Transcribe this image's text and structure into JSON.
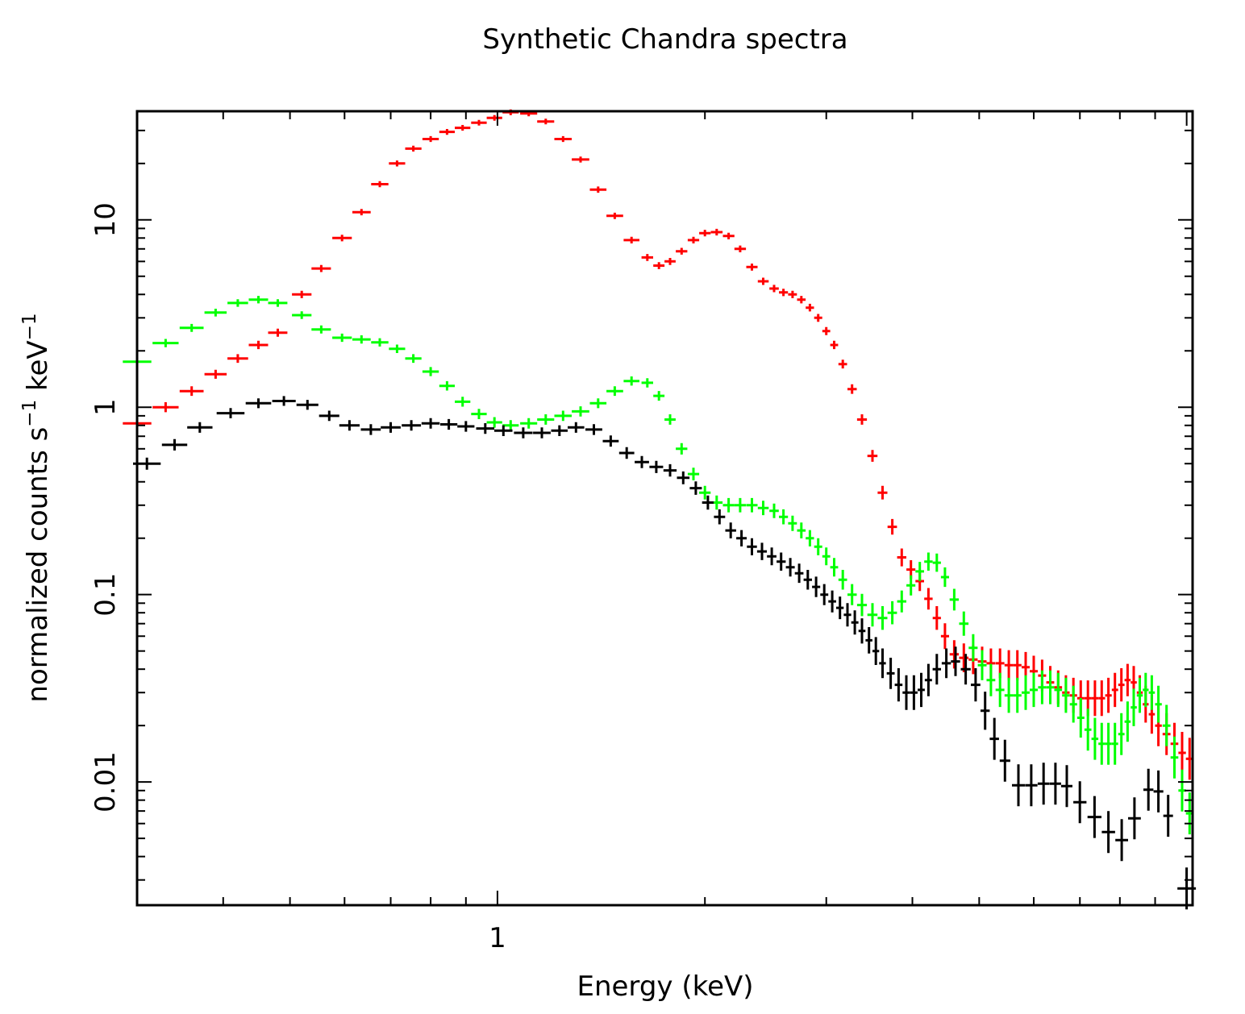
{
  "chart_data": {
    "type": "scatter",
    "title": "Synthetic Chandra spectra",
    "xlabel": "Energy (keV)",
    "ylabel": {
      "prefix": "normalized counts s",
      "exp1": "−1",
      "middle": " keV",
      "exp2": "−1"
    },
    "xscale": "log",
    "yscale": "log",
    "xlim": [
      0.3,
      10.2
    ],
    "ylim": [
      0.0022,
      38
    ],
    "x_tick_labels": [
      {
        "value": 1,
        "label": "1"
      }
    ],
    "y_tick_labels": [
      {
        "value": 10,
        "label": "10"
      },
      {
        "value": 1,
        "label": "1"
      },
      {
        "value": 0.1,
        "label": "0.1"
      },
      {
        "value": 0.01,
        "label": "0.01"
      }
    ],
    "series": [
      {
        "name": "red",
        "color": "#ff0000",
        "points": [
          [
            0.3,
            0.82
          ],
          [
            0.33,
            1.0
          ],
          [
            0.36,
            1.22
          ],
          [
            0.39,
            1.5
          ],
          [
            0.42,
            1.82
          ],
          [
            0.45,
            2.15
          ],
          [
            0.48,
            2.5
          ],
          [
            0.52,
            4.0
          ],
          [
            0.555,
            5.5
          ],
          [
            0.595,
            8.0
          ],
          [
            0.635,
            11.0
          ],
          [
            0.675,
            15.5
          ],
          [
            0.715,
            20.0
          ],
          [
            0.755,
            24.0
          ],
          [
            0.8,
            27.0
          ],
          [
            0.845,
            29.5
          ],
          [
            0.89,
            31.0
          ],
          [
            0.94,
            33.0
          ],
          [
            0.99,
            35.0
          ],
          [
            1.045,
            37.5
          ],
          [
            1.11,
            37.0
          ],
          [
            1.175,
            33.5
          ],
          [
            1.245,
            27.0
          ],
          [
            1.32,
            21.0
          ],
          [
            1.4,
            14.5
          ],
          [
            1.48,
            10.5
          ],
          [
            1.565,
            7.8
          ],
          [
            1.65,
            6.3
          ],
          [
            1.715,
            5.7
          ],
          [
            1.78,
            6.0
          ],
          [
            1.85,
            6.8
          ],
          [
            1.925,
            7.8
          ],
          [
            2.0,
            8.5
          ],
          [
            2.08,
            8.6
          ],
          [
            2.165,
            8.2
          ],
          [
            2.25,
            7.0
          ],
          [
            2.34,
            5.6
          ],
          [
            2.43,
            4.7
          ],
          [
            2.52,
            4.3
          ],
          [
            2.6,
            4.1
          ],
          [
            2.68,
            4.0
          ],
          [
            2.76,
            3.75
          ],
          [
            2.84,
            3.4
          ],
          [
            2.92,
            3.0
          ],
          [
            3.0,
            2.55
          ],
          [
            3.08,
            2.15
          ],
          [
            3.17,
            1.7
          ],
          [
            3.27,
            1.25
          ],
          [
            3.38,
            0.86
          ],
          [
            3.5,
            0.55
          ],
          [
            3.62,
            0.35
          ],
          [
            3.74,
            0.23
          ],
          [
            3.86,
            0.158
          ],
          [
            3.98,
            0.136
          ],
          [
            4.1,
            0.118
          ],
          [
            4.22,
            0.095
          ],
          [
            4.34,
            0.075
          ],
          [
            4.46,
            0.06
          ],
          [
            4.6,
            0.048
          ],
          [
            4.75,
            0.046
          ],
          [
            4.9,
            0.045
          ],
          [
            5.05,
            0.044
          ],
          [
            5.2,
            0.043
          ],
          [
            5.36,
            0.043
          ],
          [
            5.52,
            0.042
          ],
          [
            5.68,
            0.042
          ],
          [
            5.84,
            0.041
          ],
          [
            6.0,
            0.039
          ],
          [
            6.17,
            0.037
          ],
          [
            6.34,
            0.034
          ],
          [
            6.51,
            0.032
          ],
          [
            6.68,
            0.03
          ],
          [
            6.85,
            0.029
          ],
          [
            7.02,
            0.028
          ],
          [
            7.19,
            0.028
          ],
          [
            7.36,
            0.028
          ],
          [
            7.53,
            0.028
          ],
          [
            7.7,
            0.029
          ],
          [
            7.87,
            0.031
          ],
          [
            8.04,
            0.033
          ],
          [
            8.21,
            0.035
          ],
          [
            8.38,
            0.034
          ],
          [
            8.55,
            0.03
          ],
          [
            8.72,
            0.026
          ],
          [
            8.9,
            0.023
          ],
          [
            9.1,
            0.02
          ],
          [
            9.35,
            0.018
          ],
          [
            9.6,
            0.016
          ],
          [
            9.85,
            0.0143
          ],
          [
            10.1,
            0.0133
          ]
        ]
      },
      {
        "name": "green",
        "color": "#00ff00",
        "points": [
          [
            0.3,
            1.75
          ],
          [
            0.33,
            2.2
          ],
          [
            0.36,
            2.65
          ],
          [
            0.39,
            3.2
          ],
          [
            0.42,
            3.6
          ],
          [
            0.45,
            3.75
          ],
          [
            0.48,
            3.6
          ],
          [
            0.52,
            3.1
          ],
          [
            0.555,
            2.6
          ],
          [
            0.595,
            2.35
          ],
          [
            0.635,
            2.3
          ],
          [
            0.675,
            2.22
          ],
          [
            0.715,
            2.05
          ],
          [
            0.755,
            1.82
          ],
          [
            0.8,
            1.55
          ],
          [
            0.845,
            1.3
          ],
          [
            0.89,
            1.07
          ],
          [
            0.94,
            0.92
          ],
          [
            0.99,
            0.83
          ],
          [
            1.045,
            0.8
          ],
          [
            1.11,
            0.82
          ],
          [
            1.175,
            0.86
          ],
          [
            1.245,
            0.9
          ],
          [
            1.32,
            0.95
          ],
          [
            1.4,
            1.05
          ],
          [
            1.48,
            1.22
          ],
          [
            1.565,
            1.38
          ],
          [
            1.65,
            1.35
          ],
          [
            1.715,
            1.15
          ],
          [
            1.78,
            0.86
          ],
          [
            1.85,
            0.6
          ],
          [
            1.925,
            0.44
          ],
          [
            2.0,
            0.35
          ],
          [
            2.08,
            0.31
          ],
          [
            2.165,
            0.3
          ],
          [
            2.25,
            0.3
          ],
          [
            2.34,
            0.3
          ],
          [
            2.43,
            0.29
          ],
          [
            2.52,
            0.28
          ],
          [
            2.6,
            0.26
          ],
          [
            2.68,
            0.24
          ],
          [
            2.76,
            0.22
          ],
          [
            2.84,
            0.2
          ],
          [
            2.92,
            0.18
          ],
          [
            3.0,
            0.16
          ],
          [
            3.08,
            0.14
          ],
          [
            3.17,
            0.12
          ],
          [
            3.27,
            0.1
          ],
          [
            3.38,
            0.088
          ],
          [
            3.5,
            0.078
          ],
          [
            3.62,
            0.075
          ],
          [
            3.74,
            0.08
          ],
          [
            3.86,
            0.092
          ],
          [
            3.98,
            0.112
          ],
          [
            4.1,
            0.133
          ],
          [
            4.22,
            0.15
          ],
          [
            4.34,
            0.148
          ],
          [
            4.46,
            0.124
          ],
          [
            4.6,
            0.094
          ],
          [
            4.75,
            0.07
          ],
          [
            4.9,
            0.052
          ],
          [
            5.05,
            0.042
          ],
          [
            5.2,
            0.035
          ],
          [
            5.36,
            0.031
          ],
          [
            5.52,
            0.029
          ],
          [
            5.68,
            0.029
          ],
          [
            5.84,
            0.03
          ],
          [
            6.0,
            0.031
          ],
          [
            6.17,
            0.032
          ],
          [
            6.34,
            0.032
          ],
          [
            6.51,
            0.031
          ],
          [
            6.68,
            0.029
          ],
          [
            6.85,
            0.026
          ],
          [
            7.02,
            0.022
          ],
          [
            7.19,
            0.019
          ],
          [
            7.36,
            0.017
          ],
          [
            7.53,
            0.016
          ],
          [
            7.7,
            0.016
          ],
          [
            7.87,
            0.016
          ],
          [
            8.04,
            0.018
          ],
          [
            8.21,
            0.021
          ],
          [
            8.38,
            0.025
          ],
          [
            8.55,
            0.029
          ],
          [
            8.72,
            0.031
          ],
          [
            8.9,
            0.03
          ],
          [
            9.1,
            0.026
          ],
          [
            9.35,
            0.02
          ],
          [
            9.6,
            0.0135
          ],
          [
            9.85,
            0.009
          ],
          [
            10.1,
            0.0068
          ]
        ]
      },
      {
        "name": "black",
        "color": "#000000",
        "points": [
          [
            0.31,
            0.5
          ],
          [
            0.34,
            0.63
          ],
          [
            0.37,
            0.78
          ],
          [
            0.41,
            0.93
          ],
          [
            0.45,
            1.05
          ],
          [
            0.49,
            1.08
          ],
          [
            0.53,
            1.03
          ],
          [
            0.57,
            0.9
          ],
          [
            0.61,
            0.8
          ],
          [
            0.655,
            0.76
          ],
          [
            0.7,
            0.78
          ],
          [
            0.75,
            0.8
          ],
          [
            0.8,
            0.82
          ],
          [
            0.85,
            0.81
          ],
          [
            0.9,
            0.79
          ],
          [
            0.96,
            0.77
          ],
          [
            1.02,
            0.75
          ],
          [
            1.09,
            0.73
          ],
          [
            1.16,
            0.73
          ],
          [
            1.23,
            0.75
          ],
          [
            1.3,
            0.78
          ],
          [
            1.38,
            0.76
          ],
          [
            1.46,
            0.66
          ],
          [
            1.54,
            0.57
          ],
          [
            1.62,
            0.51
          ],
          [
            1.7,
            0.48
          ],
          [
            1.78,
            0.46
          ],
          [
            1.86,
            0.42
          ],
          [
            1.94,
            0.37
          ],
          [
            2.02,
            0.31
          ],
          [
            2.1,
            0.26
          ],
          [
            2.18,
            0.22
          ],
          [
            2.26,
            0.2
          ],
          [
            2.34,
            0.18
          ],
          [
            2.42,
            0.17
          ],
          [
            2.5,
            0.16
          ],
          [
            2.58,
            0.15
          ],
          [
            2.66,
            0.14
          ],
          [
            2.74,
            0.13
          ],
          [
            2.82,
            0.12
          ],
          [
            2.9,
            0.11
          ],
          [
            2.98,
            0.1
          ],
          [
            3.06,
            0.092
          ],
          [
            3.14,
            0.085
          ],
          [
            3.22,
            0.078
          ],
          [
            3.3,
            0.071
          ],
          [
            3.38,
            0.064
          ],
          [
            3.46,
            0.057
          ],
          [
            3.54,
            0.05
          ],
          [
            3.62,
            0.043
          ],
          [
            3.72,
            0.038
          ],
          [
            3.82,
            0.033
          ],
          [
            3.92,
            0.03
          ],
          [
            4.02,
            0.03
          ],
          [
            4.12,
            0.031
          ],
          [
            4.22,
            0.035
          ],
          [
            4.34,
            0.04
          ],
          [
            4.48,
            0.043
          ],
          [
            4.62,
            0.044
          ],
          [
            4.78,
            0.04
          ],
          [
            4.94,
            0.033
          ],
          [
            5.1,
            0.024
          ],
          [
            5.26,
            0.017
          ],
          [
            5.45,
            0.013
          ],
          [
            5.7,
            0.0096
          ],
          [
            5.95,
            0.0096
          ],
          [
            6.2,
            0.0098
          ],
          [
            6.45,
            0.0098
          ],
          [
            6.7,
            0.0095
          ],
          [
            7.0,
            0.0078
          ],
          [
            7.35,
            0.0065
          ],
          [
            7.7,
            0.0054
          ],
          [
            8.05,
            0.0049
          ],
          [
            8.4,
            0.0064
          ],
          [
            8.8,
            0.0091
          ],
          [
            9.1,
            0.0089
          ],
          [
            9.4,
            0.0066
          ],
          [
            10.0,
            0.0027
          ]
        ]
      }
    ]
  }
}
